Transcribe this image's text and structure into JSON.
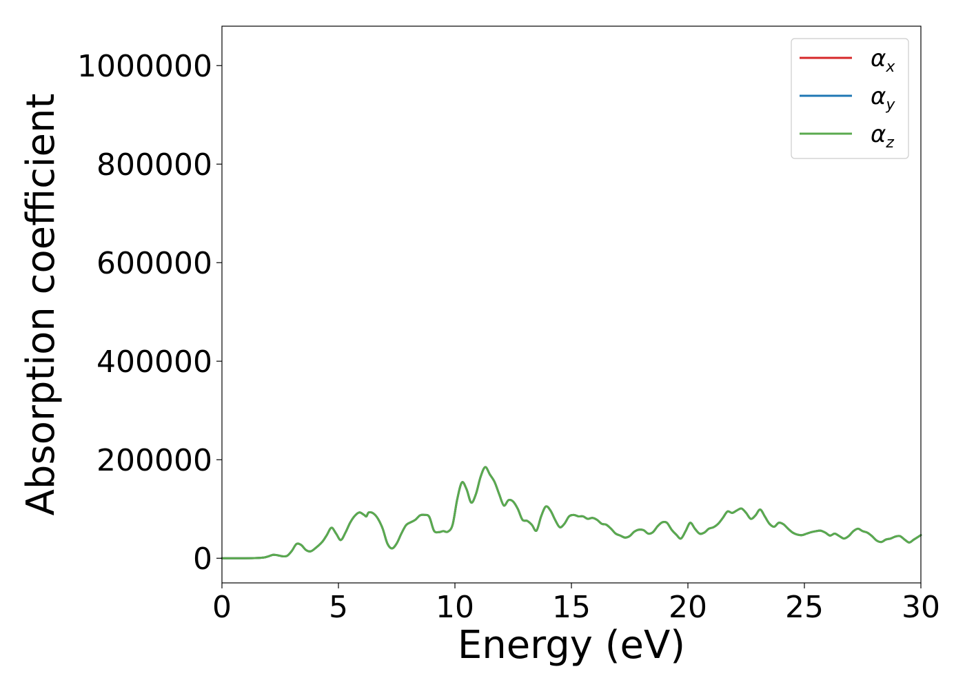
{
  "chart_data": {
    "type": "line",
    "xlabel": "Energy (eV)",
    "ylabel": "Absorption coefficient",
    "xlim": [
      0,
      30
    ],
    "ylim": [
      -50000,
      1080000
    ],
    "xticks": [
      0,
      5,
      10,
      15,
      20,
      25,
      30
    ],
    "yticks": [
      0,
      200000,
      400000,
      600000,
      800000,
      1000000
    ],
    "xtick_labels": [
      "0",
      "5",
      "10",
      "15",
      "20",
      "25",
      "30"
    ],
    "ytick_labels": [
      "0",
      "200000",
      "400000",
      "600000",
      "800000",
      "1000000"
    ],
    "grid": false,
    "legend_position": "top-right",
    "x": [
      0,
      0.5,
      1,
      1.5,
      1.8,
      2.0,
      2.2,
      2.4,
      2.6,
      2.8,
      3.0,
      3.2,
      3.4,
      3.6,
      3.8,
      4.0,
      4.3,
      4.5,
      4.7,
      4.9,
      5.1,
      5.3,
      5.5,
      5.7,
      5.9,
      6.1,
      6.2,
      6.3,
      6.5,
      6.7,
      6.9,
      7.1,
      7.3,
      7.5,
      7.7,
      7.9,
      8.1,
      8.3,
      8.5,
      8.7,
      8.9,
      9.1,
      9.3,
      9.5,
      9.7,
      9.9,
      10.1,
      10.3,
      10.5,
      10.7,
      10.9,
      11.1,
      11.3,
      11.5,
      11.7,
      11.9,
      12.1,
      12.3,
      12.5,
      12.7,
      12.9,
      13.1,
      13.3,
      13.5,
      13.7,
      13.9,
      14.1,
      14.3,
      14.5,
      14.7,
      14.9,
      15.1,
      15.3,
      15.5,
      15.7,
      15.9,
      16.1,
      16.3,
      16.5,
      16.7,
      16.9,
      17.1,
      17.3,
      17.5,
      17.7,
      17.9,
      18.1,
      18.3,
      18.5,
      18.7,
      18.9,
      19.1,
      19.3,
      19.5,
      19.7,
      19.9,
      20.1,
      20.3,
      20.5,
      20.7,
      20.9,
      21.1,
      21.3,
      21.5,
      21.7,
      21.9,
      22.1,
      22.3,
      22.5,
      22.7,
      22.9,
      23.1,
      23.3,
      23.5,
      23.7,
      23.9,
      24.1,
      24.3,
      24.5,
      24.7,
      24.9,
      25.1,
      25.3,
      25.5,
      25.7,
      25.9,
      26.1,
      26.3,
      26.5,
      26.7,
      26.9,
      27.1,
      27.3,
      27.5,
      27.7,
      27.9,
      28.1,
      28.3,
      28.5,
      28.7,
      28.9,
      29.1,
      29.3,
      29.5,
      29.7,
      30.0
    ],
    "series": [
      {
        "name": "α_x",
        "name_base": "α",
        "name_sub": "x",
        "color": "#d62728",
        "values": [
          0,
          0,
          0,
          500,
          1500,
          4000,
          7000,
          6000,
          4000,
          5000,
          15000,
          29000,
          27000,
          17000,
          14000,
          20000,
          33000,
          47000,
          62000,
          50000,
          37000,
          52000,
          72000,
          86000,
          93000,
          88000,
          85000,
          93000,
          91000,
          80000,
          60000,
          30000,
          20000,
          30000,
          50000,
          67000,
          73000,
          78000,
          87000,
          88000,
          84000,
          56000,
          53000,
          55000,
          54000,
          68000,
          120000,
          154000,
          140000,
          113000,
          130000,
          165000,
          185000,
          170000,
          155000,
          130000,
          107000,
          118000,
          115000,
          100000,
          78000,
          76000,
          68000,
          56000,
          85000,
          105000,
          97000,
          78000,
          63000,
          70000,
          85000,
          88000,
          85000,
          85000,
          80000,
          82000,
          78000,
          70000,
          68000,
          60000,
          50000,
          46000,
          42000,
          45000,
          54000,
          58000,
          57000,
          50000,
          53000,
          65000,
          73000,
          72000,
          58000,
          48000,
          40000,
          55000,
          72000,
          60000,
          50000,
          52000,
          60000,
          63000,
          70000,
          82000,
          95000,
          92000,
          97000,
          101000,
          92000,
          80000,
          87000,
          99000,
          85000,
          70000,
          64000,
          72000,
          69000,
          60000,
          52000,
          48000,
          47000,
          50000,
          53000,
          55000,
          56000,
          52000,
          46000,
          50000,
          45000,
          40000,
          45000,
          55000,
          60000,
          55000,
          52000,
          45000,
          36000,
          33000,
          38000,
          40000,
          44000,
          45000,
          38000,
          32000,
          38000,
          47000
        ]
      },
      {
        "name": "α_y",
        "name_base": "α",
        "name_sub": "y",
        "color": "#1f77b4",
        "values": [
          0,
          0,
          0,
          500,
          1500,
          4000,
          7000,
          6000,
          4000,
          5000,
          15000,
          29000,
          27000,
          17000,
          14000,
          20000,
          33000,
          47000,
          62000,
          50000,
          37000,
          52000,
          72000,
          86000,
          93000,
          88000,
          85000,
          93000,
          91000,
          80000,
          60000,
          30000,
          20000,
          30000,
          50000,
          67000,
          73000,
          78000,
          87000,
          88000,
          84000,
          56000,
          53000,
          55000,
          54000,
          68000,
          120000,
          154000,
          140000,
          113000,
          130000,
          165000,
          185000,
          170000,
          155000,
          130000,
          107000,
          118000,
          115000,
          100000,
          78000,
          76000,
          68000,
          56000,
          85000,
          105000,
          97000,
          78000,
          63000,
          70000,
          85000,
          88000,
          85000,
          85000,
          80000,
          82000,
          78000,
          70000,
          68000,
          60000,
          50000,
          46000,
          42000,
          45000,
          54000,
          58000,
          57000,
          50000,
          53000,
          65000,
          73000,
          72000,
          58000,
          48000,
          40000,
          55000,
          72000,
          60000,
          50000,
          52000,
          60000,
          63000,
          70000,
          82000,
          95000,
          92000,
          97000,
          101000,
          92000,
          80000,
          87000,
          99000,
          85000,
          70000,
          64000,
          72000,
          69000,
          60000,
          52000,
          48000,
          47000,
          50000,
          53000,
          55000,
          56000,
          52000,
          46000,
          50000,
          45000,
          40000,
          45000,
          55000,
          60000,
          55000,
          52000,
          45000,
          36000,
          33000,
          38000,
          40000,
          44000,
          45000,
          38000,
          32000,
          38000,
          47000
        ]
      },
      {
        "name": "α_z",
        "name_base": "α",
        "name_sub": "z",
        "color": "#5aaa4e",
        "values": [
          0,
          0,
          0,
          500,
          1500,
          4000,
          7000,
          6000,
          4000,
          5000,
          15000,
          29000,
          27000,
          17000,
          14000,
          20000,
          33000,
          47000,
          62000,
          50000,
          37000,
          52000,
          72000,
          86000,
          93000,
          88000,
          85000,
          93000,
          91000,
          80000,
          60000,
          30000,
          20000,
          30000,
          50000,
          67000,
          73000,
          78000,
          87000,
          88000,
          84000,
          56000,
          53000,
          55000,
          54000,
          68000,
          120000,
          154000,
          140000,
          113000,
          130000,
          165000,
          185000,
          170000,
          155000,
          130000,
          107000,
          118000,
          115000,
          100000,
          78000,
          76000,
          68000,
          56000,
          85000,
          105000,
          97000,
          78000,
          63000,
          70000,
          85000,
          88000,
          85000,
          85000,
          80000,
          82000,
          78000,
          70000,
          68000,
          60000,
          50000,
          46000,
          42000,
          45000,
          54000,
          58000,
          57000,
          50000,
          53000,
          65000,
          73000,
          72000,
          58000,
          48000,
          40000,
          55000,
          72000,
          60000,
          50000,
          52000,
          60000,
          63000,
          70000,
          82000,
          95000,
          92000,
          97000,
          101000,
          92000,
          80000,
          87000,
          99000,
          85000,
          70000,
          64000,
          72000,
          69000,
          60000,
          52000,
          48000,
          47000,
          50000,
          53000,
          55000,
          56000,
          52000,
          46000,
          50000,
          45000,
          40000,
          45000,
          55000,
          60000,
          55000,
          52000,
          45000,
          36000,
          33000,
          38000,
          40000,
          44000,
          45000,
          38000,
          32000,
          38000,
          47000
        ]
      }
    ]
  }
}
